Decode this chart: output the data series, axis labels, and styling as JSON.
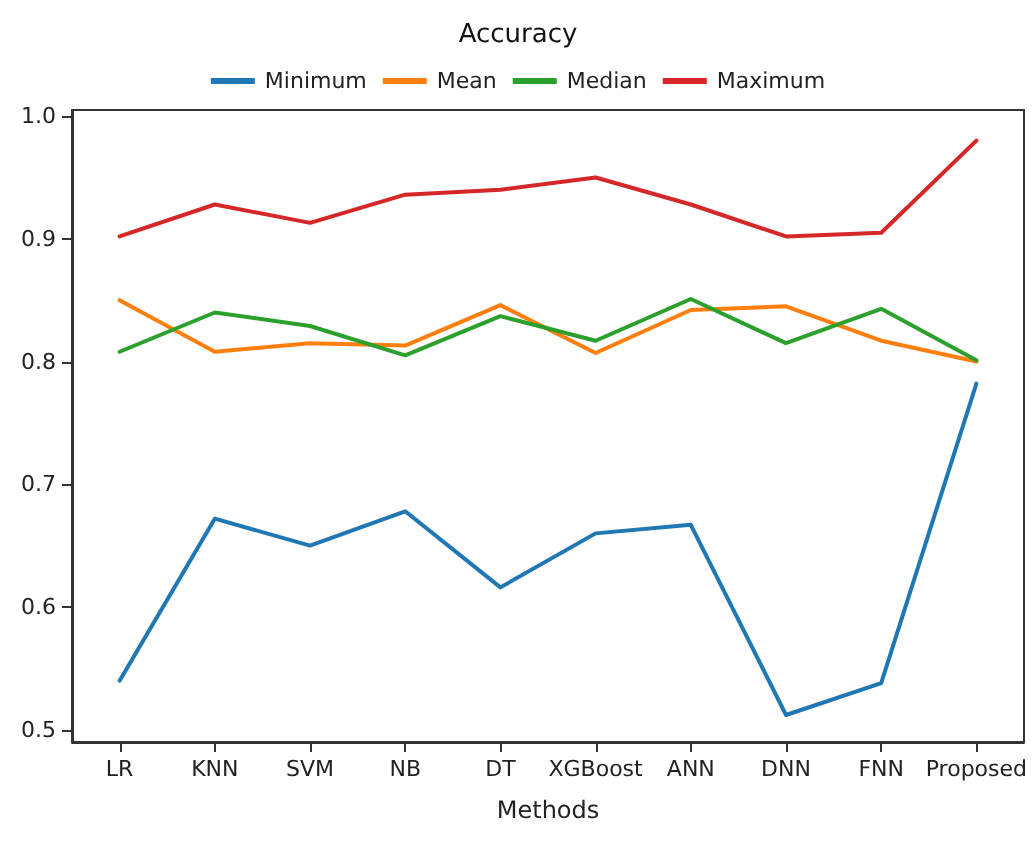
{
  "chart_data": {
    "type": "line",
    "title": "Accuracy",
    "xlabel": "Methods",
    "categories": [
      "LR",
      "KNN",
      "SVM",
      "NB",
      "DT",
      "XGBoost",
      "ANN",
      "DNN",
      "FNN",
      "Proposed"
    ],
    "series": [
      {
        "name": "Minimum",
        "color": "#1f77b4",
        "values": [
          0.54,
          0.672,
          0.65,
          0.678,
          0.616,
          0.66,
          0.667,
          0.512,
          0.538,
          0.782
        ]
      },
      {
        "name": "Mean",
        "color": "#ff7f0e",
        "values": [
          0.85,
          0.808,
          0.815,
          0.813,
          0.846,
          0.807,
          0.842,
          0.845,
          0.817,
          0.8
        ]
      },
      {
        "name": "Median",
        "color": "#2ca02c",
        "values": [
          0.808,
          0.84,
          0.829,
          0.805,
          0.837,
          0.817,
          0.851,
          0.815,
          0.843,
          0.801
        ]
      },
      {
        "name": "Maximum",
        "color": "#d62728",
        "values": [
          0.902,
          0.928,
          0.913,
          0.936,
          0.94,
          0.95,
          0.928,
          0.902,
          0.905,
          0.98
        ]
      }
    ],
    "ylim": [
      0.49,
      1.005
    ],
    "yticks": [
      {
        "value": 0.5,
        "label": "0.5"
      },
      {
        "value": 0.6,
        "label": "0.6"
      },
      {
        "value": 0.7,
        "label": "0.7"
      },
      {
        "value": 0.8,
        "label": "0.8"
      },
      {
        "value": 0.9,
        "label": "0.9"
      },
      {
        "value": 1.0,
        "label": "1.0"
      }
    ],
    "grid": false,
    "legend": "top",
    "marker": "none",
    "line_style": "solid"
  }
}
